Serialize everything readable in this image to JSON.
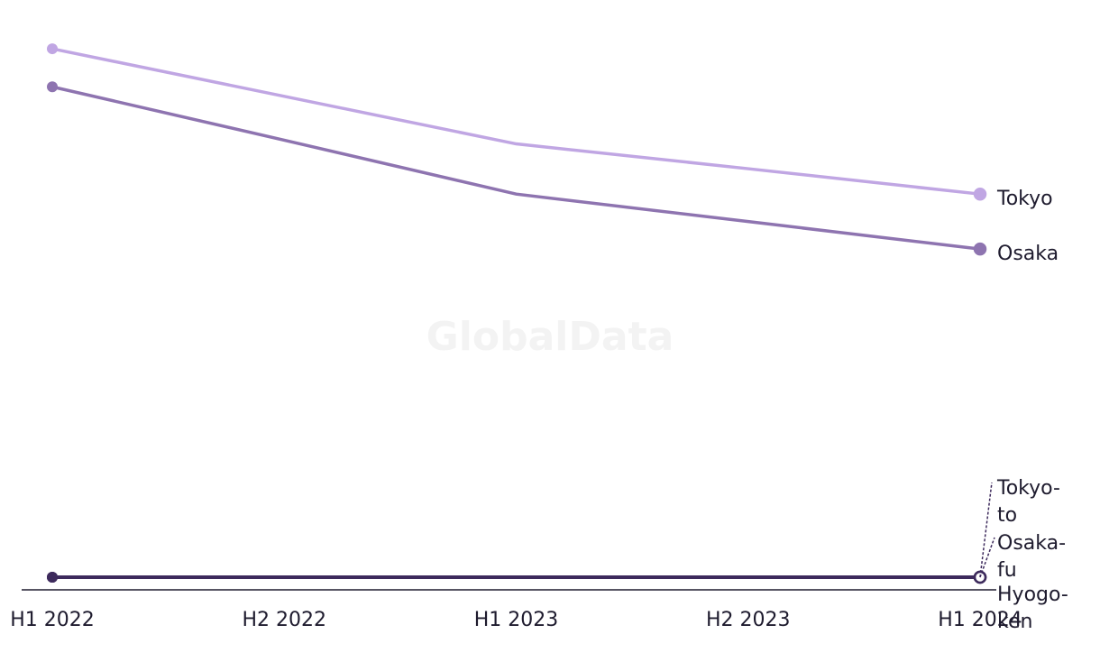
{
  "chart_data": {
    "type": "line",
    "watermark": "GlobalData",
    "categories": [
      "H1 2022",
      "H2 2022",
      "H1 2023",
      "H2 2023",
      "H1 2024"
    ],
    "ylim": [
      0,
      102.4
    ],
    "series": [
      {
        "name": "Tokyo",
        "color": "#c0a6e3",
        "values": [
          100,
          91,
          82,
          77.3,
          72.5
        ]
      },
      {
        "name": "Osaka",
        "color": "#8e74b0",
        "values": [
          92.8,
          82.7,
          72.5,
          67.3,
          62.1
        ]
      },
      {
        "name": "Tokyo-to",
        "color": "#3d2a5c",
        "values": [
          0,
          0,
          0,
          0,
          0
        ]
      },
      {
        "name": "Osaka-fu",
        "color": "#3d2a5c",
        "values": [
          0,
          0,
          0,
          0,
          0
        ]
      },
      {
        "name": "Hyogo-ken",
        "color": "#3d2a5c",
        "values": [
          0,
          0,
          0,
          0,
          0
        ]
      }
    ]
  }
}
